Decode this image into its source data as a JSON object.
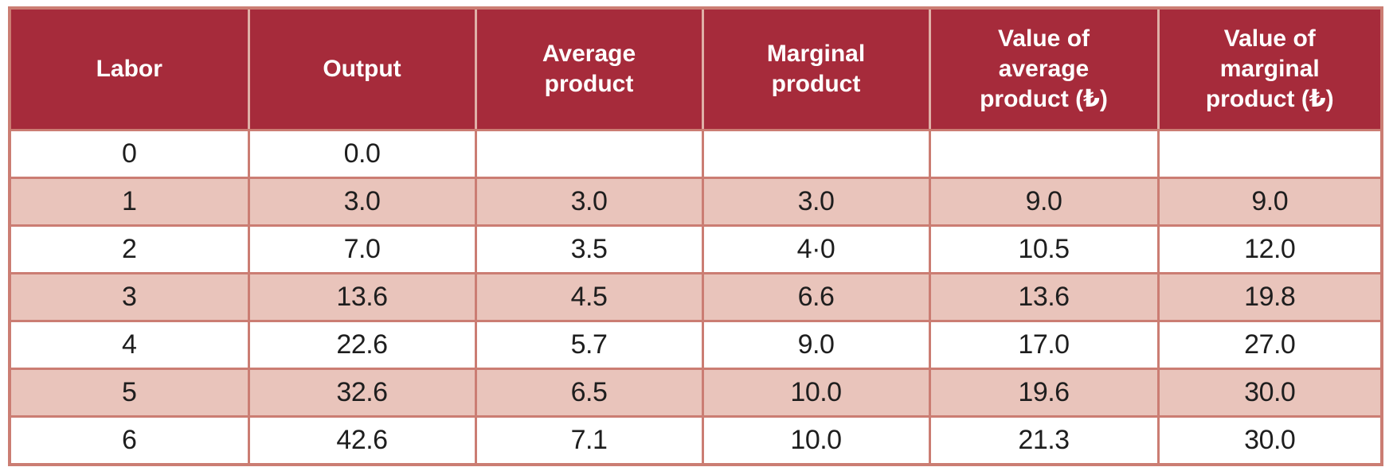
{
  "chart_data": {
    "type": "table",
    "columns": [
      "Labor",
      "Output",
      "Average product",
      "Marginal product",
      "Value of average product (₺)",
      "Value of marginal product (₺)"
    ],
    "rows": [
      [
        "0",
        "0.0",
        "",
        "",
        "",
        ""
      ],
      [
        "1",
        "3.0",
        "3.0",
        "3.0",
        "9.0",
        "9.0"
      ],
      [
        "2",
        "7.0",
        "3.5",
        "4·0",
        "10.5",
        "12.0"
      ],
      [
        "3",
        "13.6",
        "4.5",
        "6.6",
        "13.6",
        "19.8"
      ],
      [
        "4",
        "22.6",
        "5.7",
        "9.0",
        "17.0",
        "27.0"
      ],
      [
        "5",
        "32.6",
        "6.5",
        "10.0",
        "19.6",
        "30.0"
      ],
      [
        "6",
        "42.6",
        "7.1",
        "10.0",
        "21.3",
        "30.0"
      ]
    ],
    "shaded_row_indices": [
      1,
      3,
      5
    ],
    "currency_symbol": "₺",
    "legend_position": "none",
    "grid": true
  },
  "colors": {
    "header_bg": "#a62b3b",
    "header_text": "#ffffff",
    "header_grid": "#dfb0a7",
    "body_grid": "#cb7d73",
    "row_shaded": "#e9c4bb",
    "row_plain": "#ffffff",
    "body_text": "#1e1e1e",
    "page_bg": "#ffffff"
  }
}
